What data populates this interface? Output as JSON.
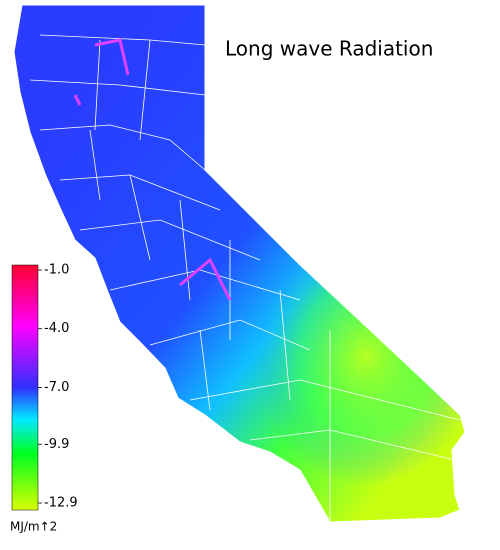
{
  "title": "Long wave Radiation",
  "colorbar": {
    "label": "MJ/m↑2",
    "lim": [
      -12.9,
      -1.0
    ],
    "ticks": [
      {
        "value": -1.0,
        "label": "-1.0"
      },
      {
        "value": -4.0,
        "label": "-4.0"
      },
      {
        "value": -7.0,
        "label": "-7.0"
      },
      {
        "value": -9.9,
        "label": "-9.9"
      },
      {
        "value": -12.9,
        "label": "-12.9"
      }
    ]
  }
}
